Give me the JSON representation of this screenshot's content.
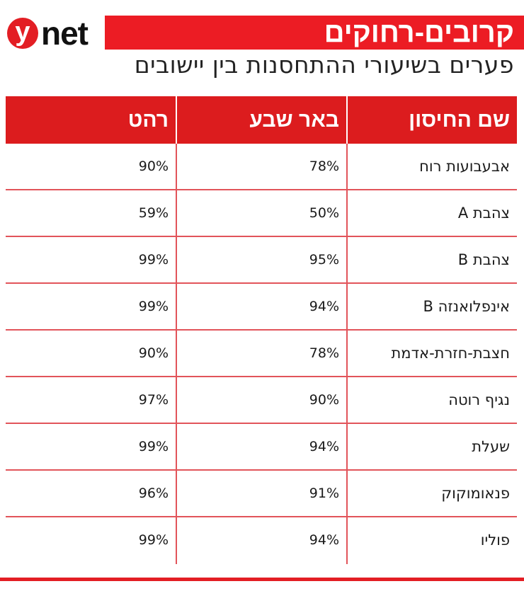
{
  "logo": {
    "circle_letter": "y",
    "word": "net"
  },
  "header": {
    "title": "קרובים-רחוקים",
    "subtitle": "פערים בשיעורי ההתחסנות בין יישובים"
  },
  "colors": {
    "brand_red": "#ec1c24",
    "header_red": "#dc1c1e",
    "grid_line": "#e2545a"
  },
  "table": {
    "columns": [
      "שם החיסון",
      "באר שבע",
      "רהט"
    ],
    "rows": [
      {
        "name": "אבעבועות רוח",
        "beer_sheva": "78%",
        "rahat": "90%"
      },
      {
        "name": "צהבת A",
        "beer_sheva": "50%",
        "rahat": "59%"
      },
      {
        "name": "צהבת B",
        "beer_sheva": "95%",
        "rahat": "99%"
      },
      {
        "name": "אינפלואנזה  B",
        "beer_sheva": "94%",
        "rahat": "99%"
      },
      {
        "name": "חצבת-חזרת-אדמת",
        "beer_sheva": "78%",
        "rahat": "90%"
      },
      {
        "name": "נגיף רוטה",
        "beer_sheva": "90%",
        "rahat": "97%"
      },
      {
        "name": "שעלת",
        "beer_sheva": "94%",
        "rahat": "99%"
      },
      {
        "name": "פנאומוקוק",
        "beer_sheva": "91%",
        "rahat": "96%"
      },
      {
        "name": "פוליו",
        "beer_sheva": "94%",
        "rahat": "99%"
      }
    ]
  },
  "chart_data": {
    "type": "table",
    "title": "קרובים-רחוקים",
    "subtitle": "פערים בשיעורי ההתחסנות בין יישובים",
    "columns": [
      "שם החיסון",
      "באר שבע",
      "רהט"
    ],
    "categories": [
      "אבעבועות רוח",
      "צהבת A",
      "צהבת B",
      "אינפלואנזה B",
      "חצבת-חזרת-אדמת",
      "נגיף רוטה",
      "שעלת",
      "פנאומוקוק",
      "פוליו"
    ],
    "series": [
      {
        "name": "באר שבע",
        "values": [
          78,
          50,
          95,
          94,
          78,
          90,
          94,
          91,
          94
        ]
      },
      {
        "name": "רהט",
        "values": [
          90,
          59,
          99,
          99,
          90,
          97,
          99,
          96,
          99
        ]
      }
    ],
    "unit": "%"
  }
}
